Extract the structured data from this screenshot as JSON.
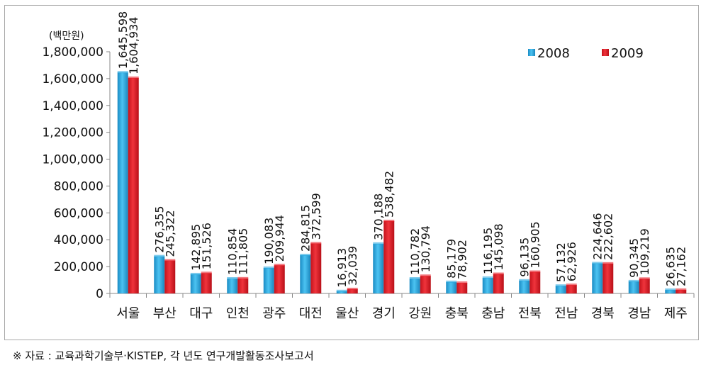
{
  "chart_data": {
    "type": "bar",
    "unit_label": "(백만원)",
    "categories": [
      "서울",
      "부산",
      "대구",
      "인천",
      "광주",
      "대전",
      "울산",
      "경기",
      "강원",
      "충북",
      "충남",
      "전북",
      "전남",
      "경북",
      "경남",
      "제주"
    ],
    "series": [
      {
        "name": "2008",
        "color": "#29a8e0",
        "values": [
          1645598,
          276355,
          142895,
          110854,
          190083,
          284815,
          16913,
          370188,
          110782,
          85179,
          116195,
          96135,
          57132,
          224646,
          90345,
          26635
        ],
        "labels": [
          "1,645,598",
          "276,355",
          "142,895",
          "110,854",
          "190,083",
          "284,815",
          "16,913",
          "370,188",
          "110,782",
          "85,179",
          "116,195",
          "96,135",
          "57,132",
          "224,646",
          "90,345",
          "26,635"
        ]
      },
      {
        "name": "2009",
        "color": "#e8202a",
        "values": [
          1604934,
          245322,
          151526,
          111805,
          209944,
          372599,
          32039,
          538482,
          130794,
          78902,
          145098,
          160905,
          62926,
          222602,
          109219,
          27162
        ],
        "labels": [
          "1,604,934",
          "245,322",
          "151,526",
          "111,805",
          "209,944",
          "372,599",
          "32,039",
          "538,482",
          "130,794",
          "78,902",
          "145,098",
          "160,905",
          "62,926",
          "222,602",
          "109,219",
          "27,162"
        ]
      }
    ],
    "y_ticks": [
      "0",
      "200,000",
      "400,000",
      "600,000",
      "800,000",
      "1,000,000",
      "1,200,000",
      "1,400,000",
      "1,600,000",
      "1,800,000"
    ],
    "ylim": [
      0,
      1800000
    ],
    "y_step": 200000,
    "grid": false,
    "legend_position": "top-right"
  },
  "source_note": "※ 자료 : 교육과학기술부·KISTEP, 각 년도 연구개발활동조사보고서"
}
